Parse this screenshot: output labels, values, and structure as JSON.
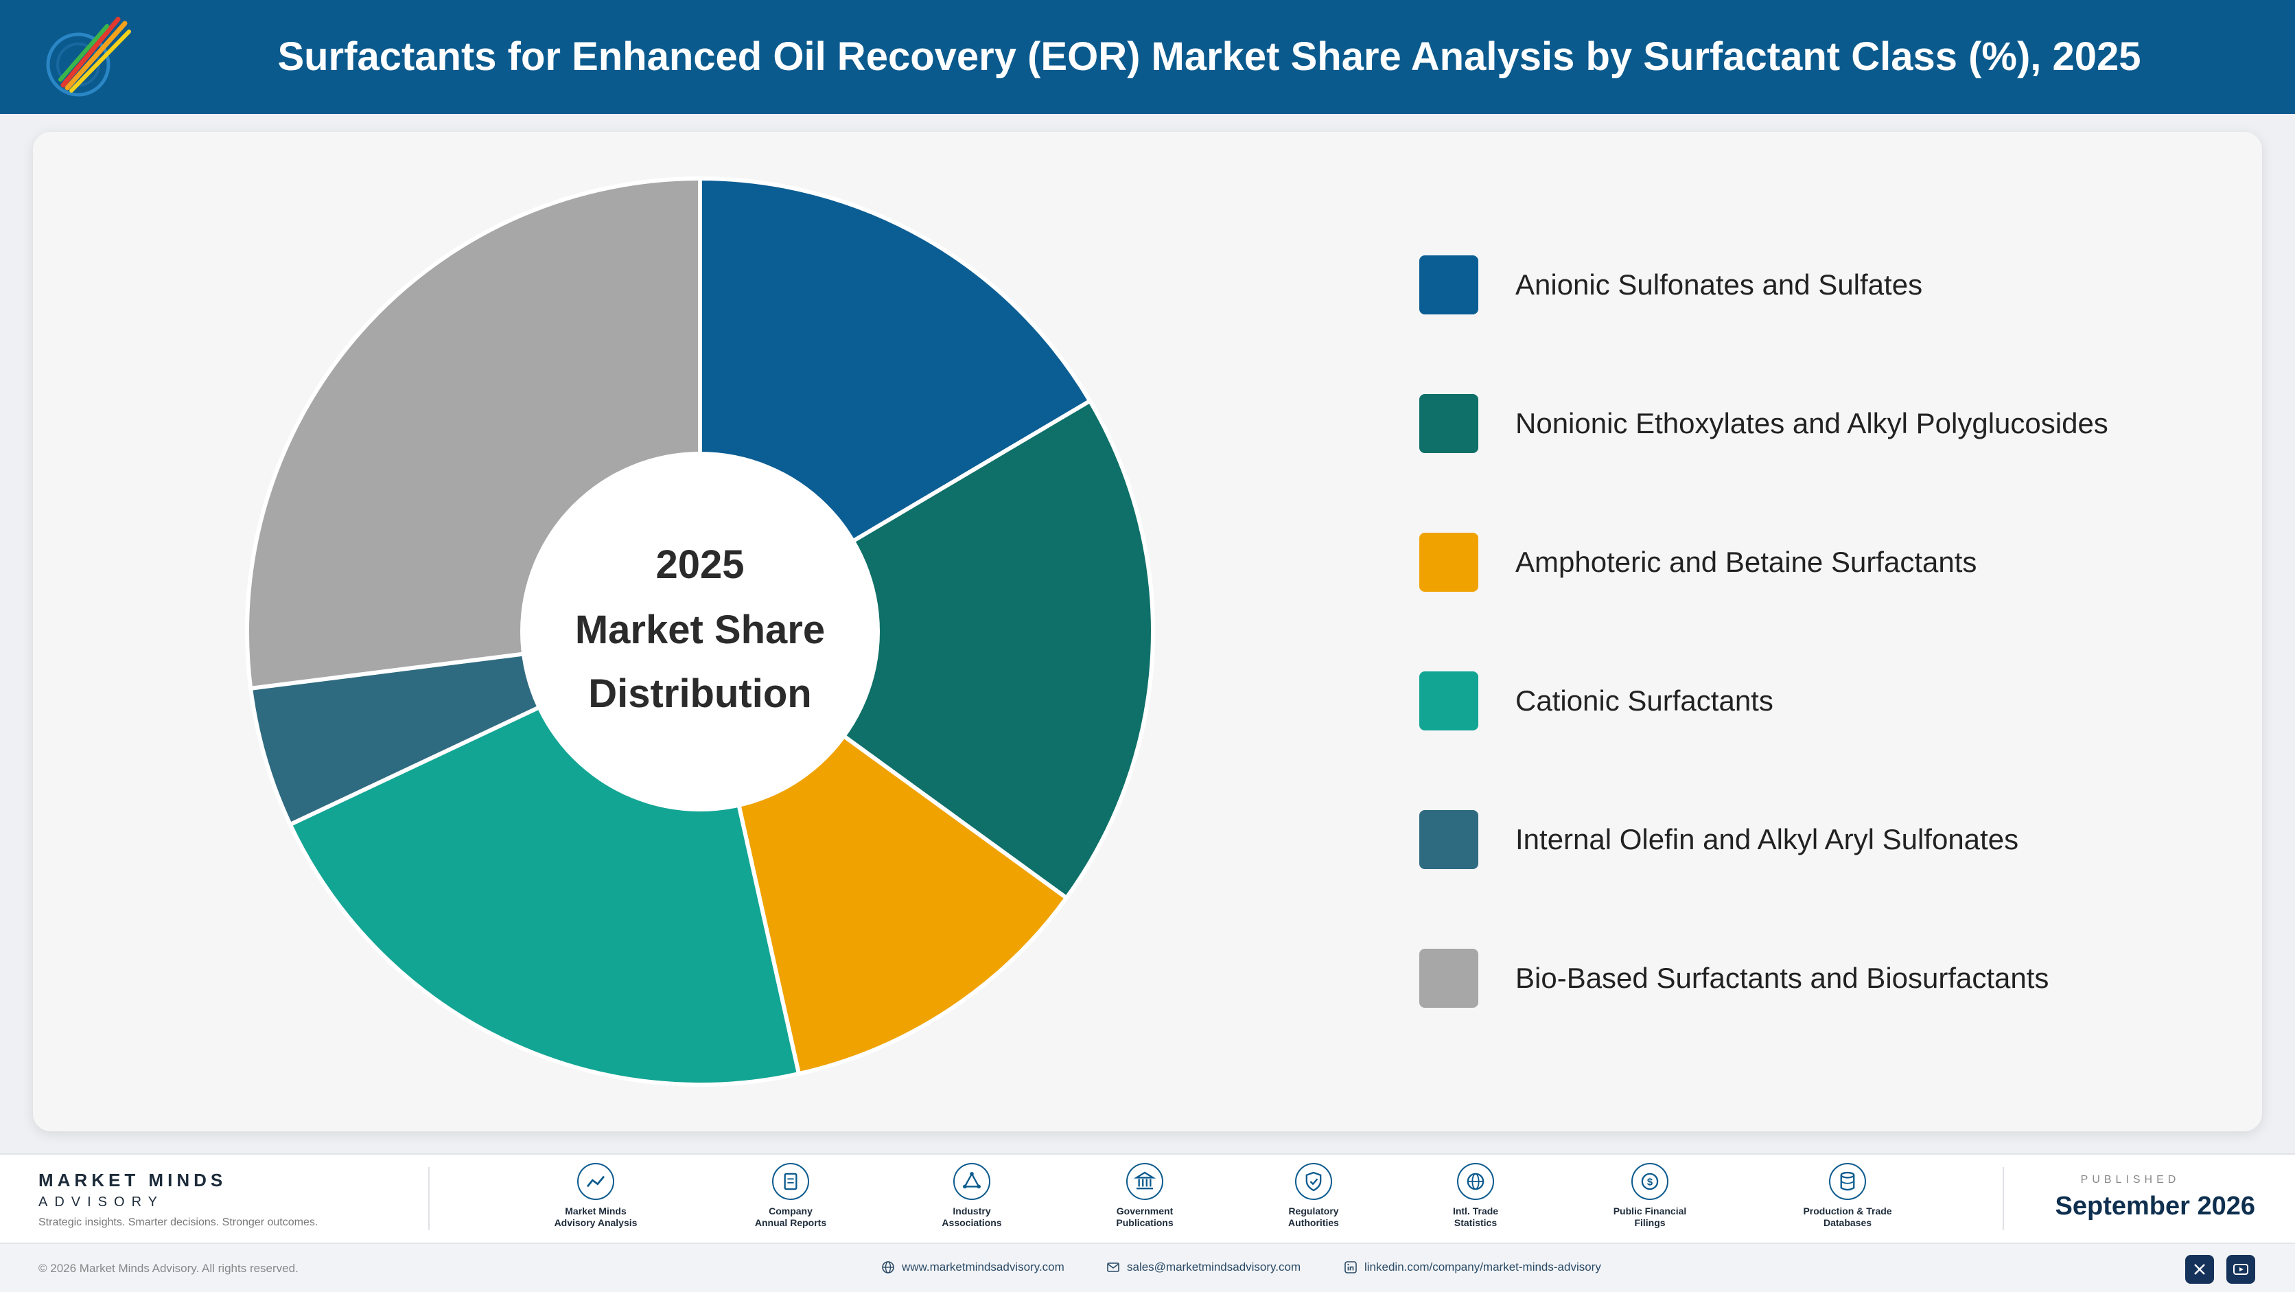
{
  "header": {
    "title": "Surfactants for Enhanced Oil Recovery (EOR) Market Share Analysis by Surfactant Class (%), 2025"
  },
  "chart_data": {
    "type": "pie",
    "title": "Surfactants for Enhanced Oil Recovery (EOR) Market Share Analysis by Surfactant Class (%), 2025",
    "center_text": [
      "2025",
      "Market Share",
      "Distribution"
    ],
    "unit": "%",
    "categories": [
      "Anionic Sulfonates and Sulfates",
      "Nonionic Ethoxylates and Alkyl Polyglucosides",
      "Amphoteric and Betaine Surfactants",
      "Cationic Surfactants",
      "Internal Olefin and Alkyl Aryl Sulfonates",
      "Bio-Based Surfactants and Biosurfactants"
    ],
    "values": [
      16.5,
      18.5,
      11.5,
      21.5,
      5.0,
      27.0
    ],
    "colors": [
      "#0b5e94",
      "#0e7068",
      "#f0a300",
      "#12a594",
      "#2f6b80",
      "#a7a7a7"
    ],
    "legend_position": "right"
  },
  "footer": {
    "brand_name": "MARKET MINDS",
    "brand_sub": "ADVISORY",
    "tagline": "Strategic insights. Smarter decisions. Stronger outcomes.",
    "sources": [
      {
        "line1": "Market Minds",
        "line2": "Advisory Analysis",
        "icon": "trend-line-icon"
      },
      {
        "line1": "Company",
        "line2": "Annual Reports",
        "icon": "document-icon"
      },
      {
        "line1": "Industry",
        "line2": "Associations",
        "icon": "network-icon"
      },
      {
        "line1": "Government",
        "line2": "Publications",
        "icon": "building-icon"
      },
      {
        "line1": "Regulatory",
        "line2": "Authorities",
        "icon": "shield-check-icon"
      },
      {
        "line1": "Intl. Trade",
        "line2": "Statistics",
        "icon": "globe-icon"
      },
      {
        "line1": "Public Financial",
        "line2": "Filings",
        "icon": "dollar-coin-icon"
      },
      {
        "line1": "Production & Trade",
        "line2": "Databases",
        "icon": "database-icon"
      }
    ],
    "published_label": "PUBLISHED",
    "published_date": "September 2026",
    "copyright": "© 2026 Market Minds Advisory. All rights reserved.",
    "website": "www.marketmindsadvisory.com",
    "email": "sales@marketmindsadvisory.com",
    "linkedin": "linkedin.com/company/market-minds-advisory"
  }
}
